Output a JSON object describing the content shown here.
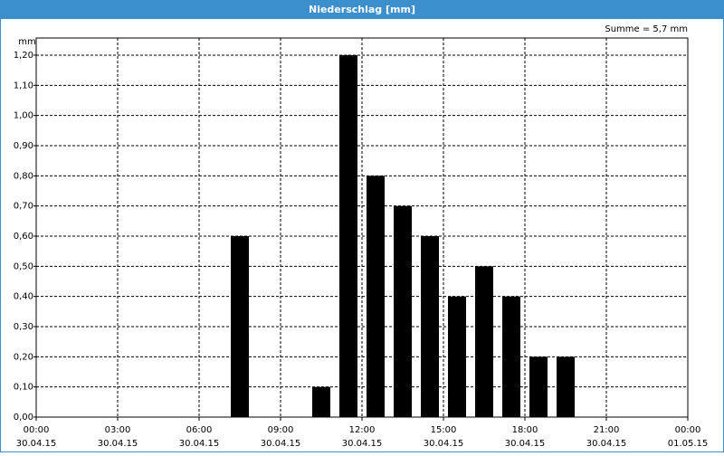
{
  "chart_data": {
    "type": "bar",
    "title": "Niederschlag [mm]",
    "y_label": "mm",
    "annotation": "Summe = 5,7 mm",
    "x": [
      7.5,
      10.5,
      11.5,
      12.5,
      13.5,
      14.5,
      15.5,
      16.5,
      17.5,
      18.5,
      19.5
    ],
    "values": [
      0.6,
      0.1,
      1.2,
      0.8,
      0.7,
      0.6,
      0.4,
      0.5,
      0.4,
      0.2,
      0.2
    ],
    "color": "#000000",
    "xlim": [
      0,
      24
    ],
    "xticks": [
      {
        "value": 0,
        "label": [
          "00:00",
          "30.04.15"
        ]
      },
      {
        "value": 3,
        "label": [
          "03:00",
          "30.04.15"
        ]
      },
      {
        "value": 6,
        "label": [
          "06:00",
          "30.04.15"
        ]
      },
      {
        "value": 9,
        "label": [
          "09:00",
          "30.04.15"
        ]
      },
      {
        "value": 12,
        "label": [
          "12:00",
          "30.04.15"
        ]
      },
      {
        "value": 15,
        "label": [
          "15:00",
          "30.04.15"
        ]
      },
      {
        "value": 18,
        "label": [
          "18:00",
          "30.04.15"
        ]
      },
      {
        "value": 21,
        "label": [
          "21:00",
          "30.04.15"
        ]
      },
      {
        "value": 24,
        "label": [
          "00:00",
          "01.05.15"
        ]
      }
    ],
    "ylim": [
      0,
      1.257
    ],
    "yticks": [
      {
        "value": 0,
        "label": "0,00"
      },
      {
        "value": 0.1,
        "label": "0,10"
      },
      {
        "value": 0.2,
        "label": "0,20"
      },
      {
        "value": 0.3,
        "label": "0,30"
      },
      {
        "value": 0.4,
        "label": "0,40"
      },
      {
        "value": 0.5,
        "label": "0,50"
      },
      {
        "value": 0.6,
        "label": "0,60"
      },
      {
        "value": 0.7,
        "label": "0,70"
      },
      {
        "value": 0.8,
        "label": "0,80"
      },
      {
        "value": 0.9,
        "label": "0,90"
      },
      {
        "value": 1.0,
        "label": "1,00"
      },
      {
        "value": 1.1,
        "label": "1,10"
      },
      {
        "value": 1.2,
        "label": "1,20"
      }
    ],
    "grid": true
  }
}
